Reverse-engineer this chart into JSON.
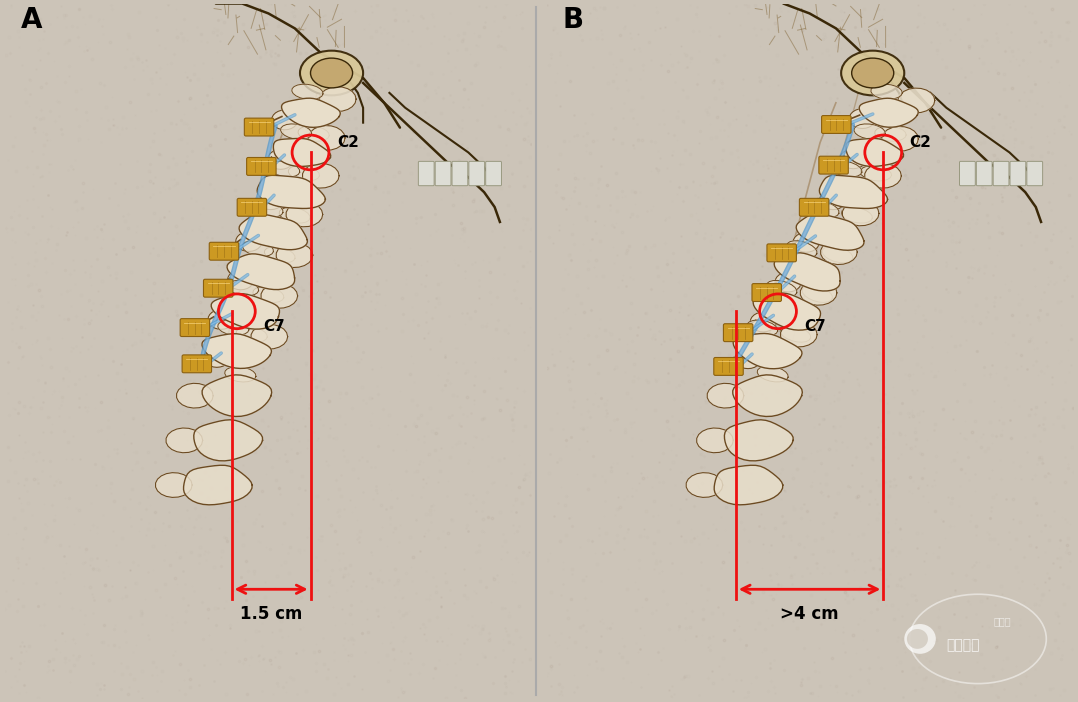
{
  "fig_width": 10.78,
  "fig_height": 7.02,
  "dpi": 100,
  "bg_color": "#ccc4b8",
  "panel_A_label": "A",
  "panel_B_label": "B",
  "label_A_measurement": "1.5 cm",
  "label_B_measurement": ">4 cm",
  "C2_label": "C2",
  "C7_label": "C7",
  "red_color": "#ee1111",
  "blue_color": "#5599cc",
  "gold_color": "#cc9922",
  "bone_fill": "#e8deca",
  "bone_edge": "#6b4a22",
  "dark_edge": "#3a2808",
  "skin_light": "#e0d0b0",
  "measurement_fontsize": 12,
  "landmark_fontsize": 11,
  "panel_label_fontsize": 20,
  "wechat_text": "脏柱鉴查",
  "watermark_inner": "脏医汇",
  "panel_divider_color": "#aaaaaa"
}
